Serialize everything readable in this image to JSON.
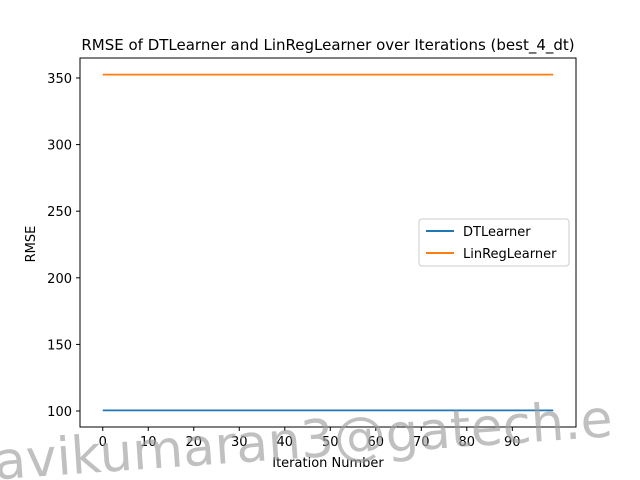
{
  "chart_data": {
    "type": "line",
    "title": "RMSE of DTLearner and LinRegLearner over Iterations (best_4_dt)",
    "xlabel": "Iteration Number",
    "ylabel": "RMSE",
    "xlim": [
      -5,
      104
    ],
    "ylim": [
      88,
      365
    ],
    "x_ticks": [
      0,
      10,
      20,
      30,
      40,
      50,
      60,
      70,
      80,
      90
    ],
    "y_ticks": [
      100,
      150,
      200,
      250,
      300,
      350
    ],
    "x": [
      0,
      99
    ],
    "grid": false,
    "legend_position": "center-right",
    "series": [
      {
        "name": "DTLearner",
        "color": "#1f77b4",
        "values": [
          100.5,
          100.5
        ]
      },
      {
        "name": "LinRegLearner",
        "color": "#ff7f0e",
        "values": [
          352.5,
          352.5
        ]
      }
    ]
  },
  "watermark": "avikumaran3@gatech.e"
}
